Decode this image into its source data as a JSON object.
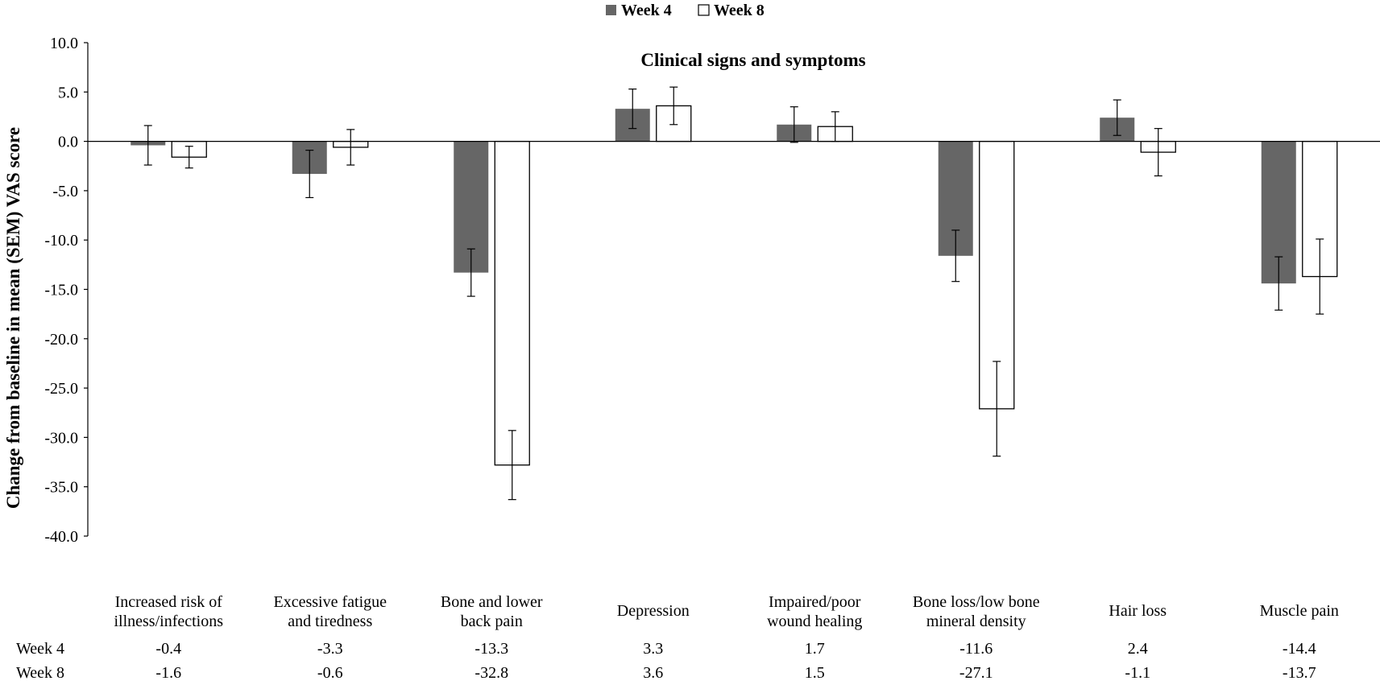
{
  "chart_data": {
    "type": "bar",
    "title": "Clinical signs and symptoms",
    "ylabel": "Change from baseline in mean (SEM) VAS score",
    "xlabel": "",
    "ylim": [
      -40,
      10
    ],
    "yticks": [
      10,
      5,
      0,
      -5,
      -10,
      -15,
      -20,
      -25,
      -30,
      -35,
      -40
    ],
    "ytick_labels": [
      "10.0",
      "5.0",
      "0.0",
      "-5.0",
      "-10.0",
      "-15.0",
      "-20.0",
      "-25.0",
      "-30.0",
      "-35.0",
      "-40.0"
    ],
    "legend_position": "top-center",
    "grid": false,
    "categories": [
      [
        "Increased risk of",
        "illness/infections"
      ],
      [
        "Excessive fatigue",
        "and tiredness"
      ],
      [
        "Bone and lower",
        "back pain"
      ],
      [
        "Depression"
      ],
      [
        "Impaired/poor",
        "wound healing"
      ],
      [
        "Bone loss/low bone",
        "mineral density"
      ],
      [
        "Hair loss"
      ],
      [
        "Muscle pain"
      ]
    ],
    "series": [
      {
        "name": "Week 4",
        "color": "#666666",
        "values": [
          -0.4,
          -3.3,
          -13.3,
          3.3,
          1.7,
          -11.6,
          2.4,
          -14.4
        ],
        "sem": [
          2.0,
          2.4,
          2.4,
          2.0,
          1.8,
          2.6,
          1.8,
          2.7
        ],
        "value_labels": [
          "-0.4",
          "-3.3",
          "-13.3",
          "3.3",
          "1.7",
          "-11.6",
          "2.4",
          "-14.4"
        ]
      },
      {
        "name": "Week 8",
        "color": "#ffffff",
        "values": [
          -1.6,
          -0.6,
          -32.8,
          3.6,
          1.5,
          -27.1,
          -1.1,
          -13.7
        ],
        "sem": [
          1.1,
          1.8,
          3.5,
          1.9,
          1.5,
          4.8,
          2.4,
          3.8
        ],
        "value_labels": [
          "-1.6",
          "-0.6",
          "-32.8",
          "3.6",
          "1.5",
          "-27.1",
          "-1.1",
          "-13.7"
        ]
      }
    ]
  }
}
